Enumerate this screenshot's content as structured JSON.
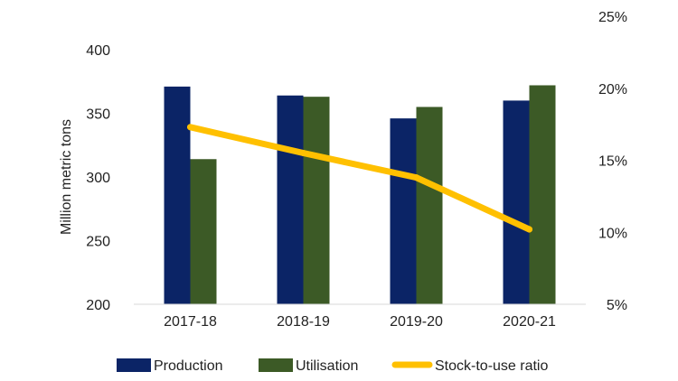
{
  "chart_data": {
    "type": "bar",
    "categories": [
      "2017-18",
      "2018-19",
      "2019-20",
      "2020-21"
    ],
    "ylabel": "Million metric tons",
    "ylim": [
      200,
      400
    ],
    "yticks": [
      200,
      250,
      300,
      350,
      400
    ],
    "y2lim": [
      0.05,
      0.25
    ],
    "y2ticks": [
      "5%",
      "10%",
      "15%",
      "20%",
      "25%"
    ],
    "y2tick_values": [
      0.05,
      0.1,
      0.15,
      0.2,
      0.25
    ],
    "grid": false,
    "legend_position": "bottom",
    "series": [
      {
        "name": "Production",
        "kind": "bar",
        "axis": "left",
        "color": "#0b2466",
        "values": [
          371,
          364,
          346,
          360
        ]
      },
      {
        "name": "Utilisation",
        "kind": "bar",
        "axis": "left",
        "color": "#3c5a26",
        "values": [
          314,
          363,
          355,
          372
        ]
      },
      {
        "name": "Stock-to-use ratio",
        "kind": "line",
        "axis": "right",
        "color": "#ffc000",
        "values": [
          0.173,
          0.155,
          0.138,
          0.102
        ]
      }
    ]
  }
}
